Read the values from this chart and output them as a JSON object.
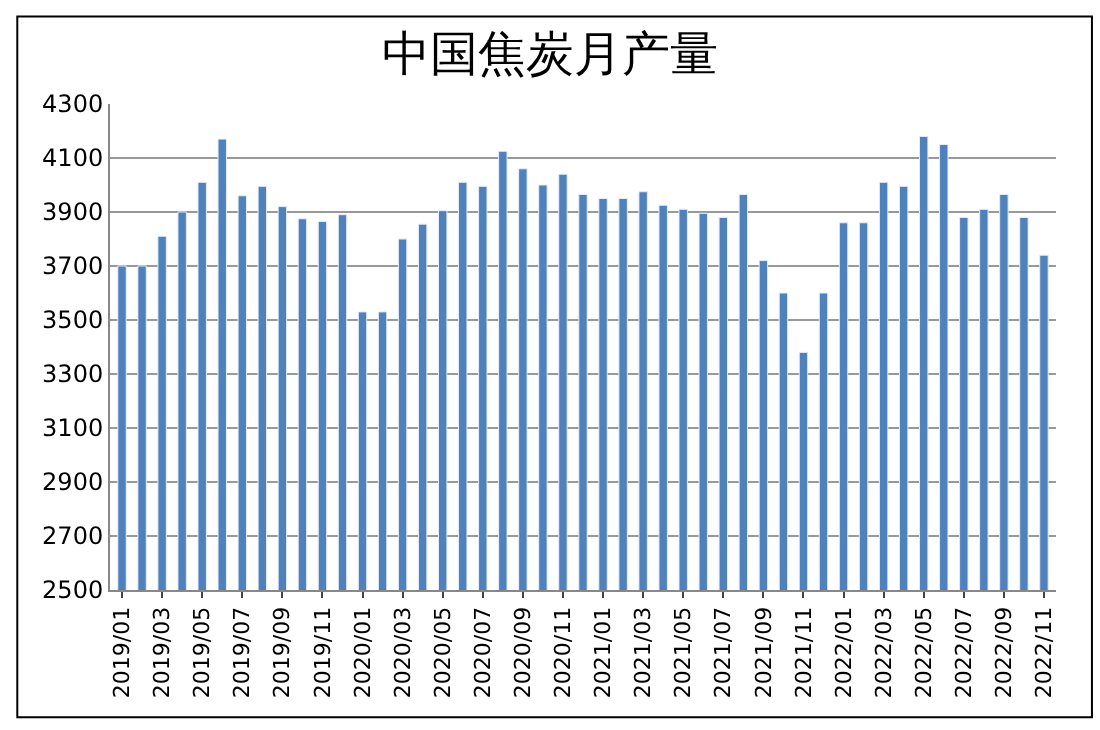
{
  "chart_data": {
    "type": "bar",
    "title": "中国焦炭月产量",
    "categories": [
      "2019/01",
      null,
      "2019/03",
      null,
      "2019/05",
      null,
      "2019/07",
      null,
      "2019/09",
      null,
      "2019/11",
      null,
      "2020/01",
      null,
      "2020/03",
      null,
      "2020/05",
      null,
      "2020/07",
      null,
      "2020/09",
      null,
      "2020/11",
      null,
      "2021/01",
      null,
      "2021/03",
      null,
      "2021/05",
      null,
      "2021/07",
      null,
      "2021/09",
      null,
      "2021/11",
      null,
      "2022/01",
      null,
      "2022/03",
      null,
      "2022/05",
      null,
      "2022/07",
      null,
      "2022/09",
      null,
      "2022/11"
    ],
    "values": [
      3700,
      3700,
      3810,
      3900,
      4010,
      4170,
      3960,
      3995,
      3920,
      3875,
      3865,
      3890,
      3530,
      3530,
      3800,
      3855,
      3905,
      4010,
      3995,
      4125,
      4060,
      4000,
      4040,
      3965,
      3950,
      3950,
      3975,
      3925,
      3910,
      3895,
      3880,
      3965,
      3720,
      3600,
      3380,
      3600,
      3860,
      3860,
      4010,
      3995,
      4180,
      4150,
      3880,
      3910,
      3965,
      3880,
      3740
    ],
    "color": "#4f81bd",
    "ylim": [
      2500,
      4300
    ],
    "yticks": [
      2500,
      2700,
      2900,
      3100,
      3300,
      3500,
      3700,
      3900,
      4100,
      4300
    ],
    "grid": "y"
  }
}
